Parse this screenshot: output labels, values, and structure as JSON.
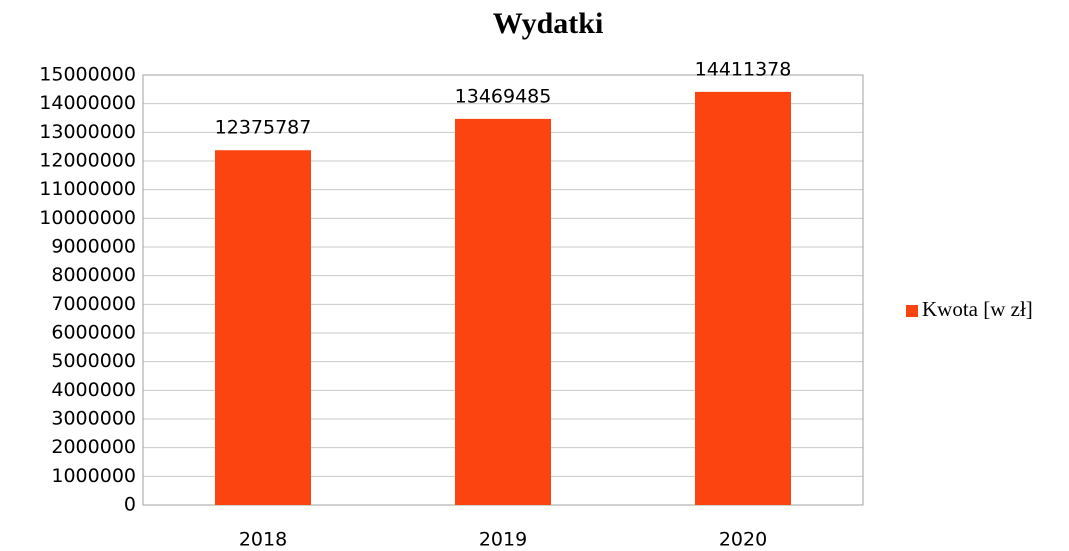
{
  "chart_data": {
    "type": "bar",
    "title": "Wydatki",
    "categories": [
      "2018",
      "2019",
      "2020"
    ],
    "series": [
      {
        "name": "Kwota [w zł]",
        "color": "#fc4410",
        "values": [
          12375787,
          13469485,
          14411378
        ]
      }
    ],
    "ylim": [
      0,
      15000000
    ],
    "yticks": [
      0,
      1000000,
      2000000,
      3000000,
      4000000,
      5000000,
      6000000,
      7000000,
      8000000,
      9000000,
      10000000,
      11000000,
      12000000,
      13000000,
      14000000,
      15000000
    ],
    "grid": true,
    "legend": "right",
    "data_labels": true
  }
}
